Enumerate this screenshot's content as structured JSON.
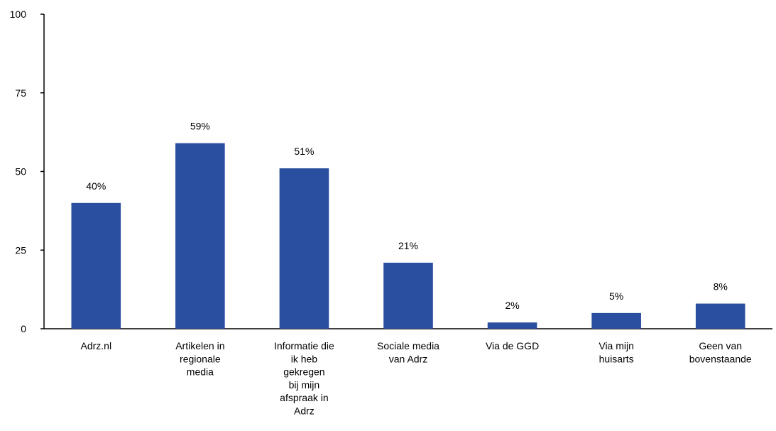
{
  "chart_data": {
    "type": "bar",
    "categories": [
      "Adrz.nl",
      "Artikelen in regionale media",
      "Informatie die ik heb gekregen bij mijn afspraak in Adrz",
      "Sociale media van Adrz",
      "Via de GGD",
      "Via mijn huisarts",
      "Geen van bovenstaande"
    ],
    "category_lines": [
      [
        "Adrz.nl"
      ],
      [
        "Artikelen in",
        "regionale",
        "media"
      ],
      [
        "Informatie die",
        "ik heb",
        "gekregen",
        "bij mijn",
        "afspraak in",
        "Adrz"
      ],
      [
        "Sociale media",
        "van Adrz"
      ],
      [
        "Via de GGD"
      ],
      [
        "Via mijn",
        "huisarts"
      ],
      [
        "Geen van",
        "bovenstaande"
      ]
    ],
    "values": [
      40,
      59,
      51,
      21,
      2,
      5,
      8
    ],
    "value_labels": [
      "40%",
      "59%",
      "51%",
      "21%",
      "2%",
      "5%",
      "8%"
    ],
    "ylim": [
      0,
      100
    ],
    "yticks": [
      0,
      25,
      50,
      75,
      100
    ],
    "ytick_labels": [
      "0",
      "25",
      "50",
      "75",
      "100"
    ],
    "title": "",
    "xlabel": "",
    "ylabel": "",
    "bar_color": "#2a4fa0",
    "grid": false,
    "legend": false
  }
}
